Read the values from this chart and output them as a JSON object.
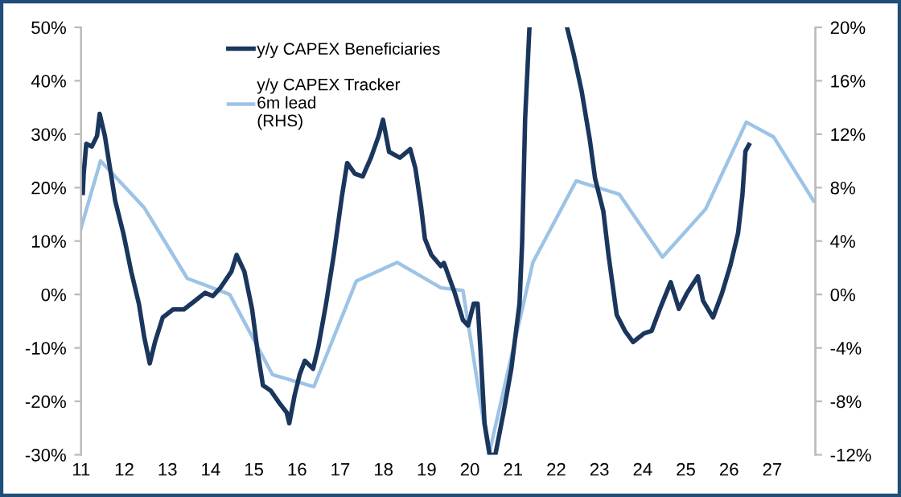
{
  "chart_data": {
    "type": "line",
    "xlim": [
      2011,
      2028
    ],
    "xticks": [
      {
        "value": 2011,
        "label": "11"
      },
      {
        "value": 2012,
        "label": "12"
      },
      {
        "value": 2013,
        "label": "13"
      },
      {
        "value": 2014,
        "label": "14"
      },
      {
        "value": 2015,
        "label": "15"
      },
      {
        "value": 2016,
        "label": "16"
      },
      {
        "value": 2017,
        "label": "17"
      },
      {
        "value": 2018,
        "label": "18"
      },
      {
        "value": 2019,
        "label": "19"
      },
      {
        "value": 2020,
        "label": "20"
      },
      {
        "value": 2021,
        "label": "21"
      },
      {
        "value": 2022,
        "label": "22"
      },
      {
        "value": 2023,
        "label": "23"
      },
      {
        "value": 2024,
        "label": "24"
      },
      {
        "value": 2025,
        "label": "25"
      },
      {
        "value": 2026,
        "label": "26"
      },
      {
        "value": 2027,
        "label": "27"
      }
    ],
    "ylim": [
      -30,
      50
    ],
    "yticks": [
      {
        "value": -30,
        "label": "-30%"
      },
      {
        "value": -20,
        "label": "-20%"
      },
      {
        "value": -10,
        "label": "-10%"
      },
      {
        "value": 0,
        "label": "0%"
      },
      {
        "value": 10,
        "label": "10%"
      },
      {
        "value": 20,
        "label": "20%"
      },
      {
        "value": 30,
        "label": "30%"
      },
      {
        "value": 40,
        "label": "40%"
      },
      {
        "value": 50,
        "label": "50%"
      }
    ],
    "y2lim": [
      -12,
      20
    ],
    "y2ticks": [
      {
        "value": -12,
        "label": "-12%"
      },
      {
        "value": -8,
        "label": "-8%"
      },
      {
        "value": -4,
        "label": "-4%"
      },
      {
        "value": 0,
        "label": "0%"
      },
      {
        "value": 4,
        "label": "4%"
      },
      {
        "value": 8,
        "label": "8%"
      },
      {
        "value": 12,
        "label": "12%"
      },
      {
        "value": 16,
        "label": "16%"
      },
      {
        "value": 20,
        "label": "20%"
      }
    ],
    "grid": false,
    "legend": "top left",
    "series": [
      {
        "name": "y/y CAPEX Beneficiaries",
        "color": "#1b365d",
        "x": [
          2011.04,
          2011.06,
          2011.12,
          2011.25,
          2011.37,
          2011.43,
          2011.55,
          2011.67,
          2011.79,
          2011.98,
          2012.16,
          2012.34,
          2012.46,
          2012.59,
          2012.71,
          2012.89,
          2013.13,
          2013.38,
          2013.62,
          2013.87,
          2014.05,
          2014.23,
          2014.48,
          2014.6,
          2014.78,
          2014.96,
          2015.09,
          2015.21,
          2015.39,
          2015.57,
          2015.76,
          2015.82,
          2015.94,
          2016.06,
          2016.18,
          2016.37,
          2016.49,
          2016.67,
          2016.85,
          2017.04,
          2017.16,
          2017.34,
          2017.52,
          2017.71,
          2017.89,
          2017.99,
          2018.13,
          2018.38,
          2018.62,
          2018.74,
          2018.87,
          2018.96,
          2019.11,
          2019.33,
          2019.4,
          2019.65,
          2019.84,
          2019.96,
          2020.09,
          2020.18,
          2020.25,
          2020.34,
          2020.46,
          2020.59,
          2020.78,
          2020.96,
          2021.15,
          2021.21,
          2021.28,
          2021.38,
          2021.8,
          2022.25,
          2022.4,
          2022.59,
          2022.78,
          2022.9,
          2023.09,
          2023.21,
          2023.4,
          2023.59,
          2023.78,
          2024.03,
          2024.21,
          2024.4,
          2024.65,
          2024.84,
          2025.03,
          2025.28,
          2025.4,
          2025.63,
          2025.84,
          2026.03,
          2026.21,
          2026.31,
          2026.38,
          2026.46
        ],
        "values": [
          19.0,
          22.6,
          28.2,
          27.7,
          29.7,
          33.8,
          29.7,
          23.6,
          17.5,
          11.4,
          4.3,
          -1.8,
          -7.9,
          -12.9,
          -8.9,
          -4.3,
          -2.8,
          -2.8,
          -1.3,
          0.3,
          -0.3,
          1.3,
          4.3,
          7.4,
          4.3,
          -2.8,
          -10.9,
          -17.0,
          -18.0,
          -20.1,
          -22.1,
          -24.1,
          -19.0,
          -15.0,
          -12.4,
          -13.9,
          -9.9,
          -1.8,
          7.4,
          18.5,
          24.6,
          22.6,
          22.1,
          25.6,
          29.7,
          32.7,
          26.7,
          25.6,
          27.2,
          23.6,
          16.5,
          10.4,
          7.4,
          5.3,
          5.9,
          0.3,
          -4.8,
          -5.8,
          -1.7,
          -1.7,
          -10.9,
          -24.1,
          -30,
          -30,
          -22.1,
          -13.9,
          -1.7,
          9.5,
          32.9,
          50,
          null,
          50,
          45.1,
          38.0,
          28.8,
          21.7,
          15.6,
          7.4,
          -3.8,
          -6.8,
          -8.9,
          -7.3,
          -6.8,
          -2.7,
          2.3,
          -2.7,
          0.3,
          3.4,
          -1.2,
          -4.3,
          0.3,
          5.4,
          11.5,
          18.6,
          26.8,
          28.0
        ]
      },
      {
        "name": "y/y CAPEX Tracker\n6m lead\n(RHS)",
        "color": "#9dc3e6",
        "axis": "y2",
        "x": [
          2011.0,
          2011.45,
          2012.46,
          2013.46,
          2014.44,
          2015.43,
          2016.39,
          2017.37,
          2018.32,
          2019.33,
          2019.84,
          2020.44,
          2021.46,
          2022.46,
          2023.46,
          2024.46,
          2025.46,
          2026.4,
          2027.03,
          2027.96
        ],
        "values": [
          5.0,
          10.0,
          6.5,
          1.2,
          0.0,
          -6.0,
          -6.9,
          1.0,
          2.4,
          0.5,
          0.3,
          -12.0,
          2.4,
          8.5,
          7.5,
          2.8,
          6.4,
          12.9,
          11.8,
          7.0
        ]
      }
    ]
  }
}
